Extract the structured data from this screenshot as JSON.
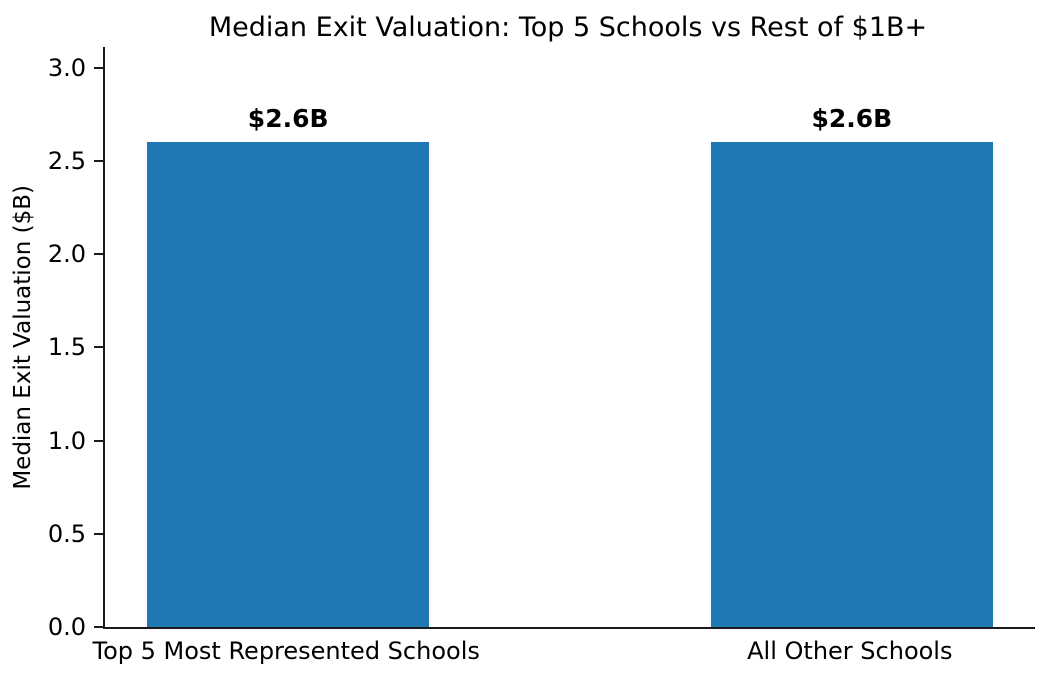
{
  "chart_data": {
    "type": "bar",
    "title": "Median Exit Valuation: Top 5 Schools vs Rest of $1B+",
    "ylabel": "Median Exit Valuation ($B)",
    "xlabel": "",
    "categories": [
      "Top 5 Most Represented Schools",
      "All Other Schools"
    ],
    "values": [
      2.6,
      2.6
    ],
    "bar_labels": [
      "$2.6B",
      "$2.6B"
    ],
    "bar_color": "#1f77b4",
    "yticks": [
      {
        "value": 0.0,
        "label": "0.0"
      },
      {
        "value": 0.5,
        "label": "0.5"
      },
      {
        "value": 1.0,
        "label": "1.0"
      },
      {
        "value": 1.5,
        "label": "1.5"
      },
      {
        "value": 2.0,
        "label": "2.0"
      },
      {
        "value": 2.5,
        "label": "2.5"
      },
      {
        "value": 3.0,
        "label": "3.0"
      }
    ],
    "ylim": [
      0,
      3.11
    ],
    "grid": false,
    "legend": "none",
    "text_color": "#000000",
    "spine_color": "#1a1a1a"
  }
}
